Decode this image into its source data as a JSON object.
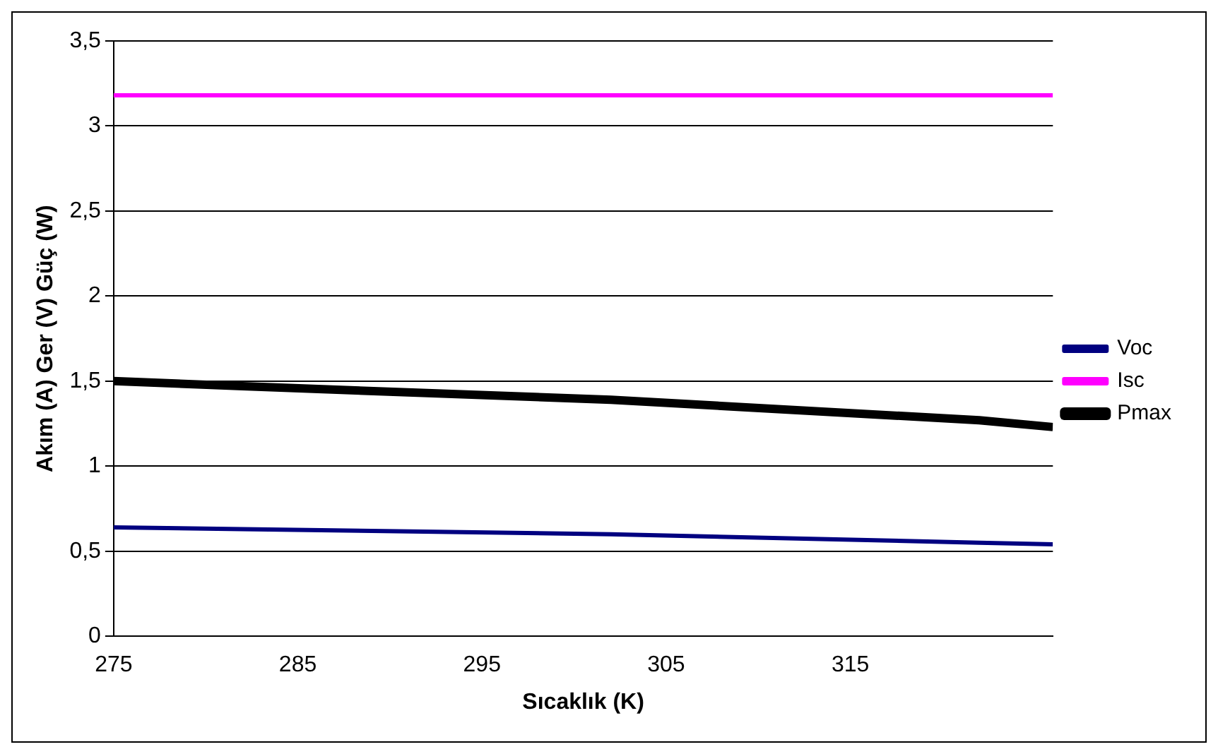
{
  "chart_data": {
    "type": "line",
    "xlabel": "Sıcaklık (K)",
    "ylabel": "Akım (A) Ger (V) Güç (W)",
    "x": [
      275,
      282,
      302,
      322,
      326
    ],
    "series": [
      {
        "name": "Voc",
        "color": "#000080",
        "values": [
          0.64,
          0.63,
          0.6,
          0.55,
          0.54
        ]
      },
      {
        "name": "Isc",
        "color": "#ff00ff",
        "values": [
          3.18,
          3.18,
          3.18,
          3.18,
          3.18
        ]
      },
      {
        "name": "Pmax",
        "color": "#000000",
        "values": [
          1.5,
          1.47,
          1.39,
          1.27,
          1.23
        ]
      }
    ],
    "xlim": [
      275,
      326
    ],
    "xticks": [
      275,
      285,
      295,
      305,
      315
    ],
    "ylim": [
      0,
      3.5
    ],
    "yticks": [
      0,
      {
        "value": 0.5,
        "label": "0,5"
      },
      1,
      {
        "value": 1.5,
        "label": "1,5"
      },
      2,
      {
        "value": 2.5,
        "label": "2,5"
      },
      3,
      {
        "value": 3.5,
        "label": "3,5"
      }
    ],
    "grid": "y",
    "legend": "right",
    "marker": "none",
    "line_style": "solid"
  }
}
